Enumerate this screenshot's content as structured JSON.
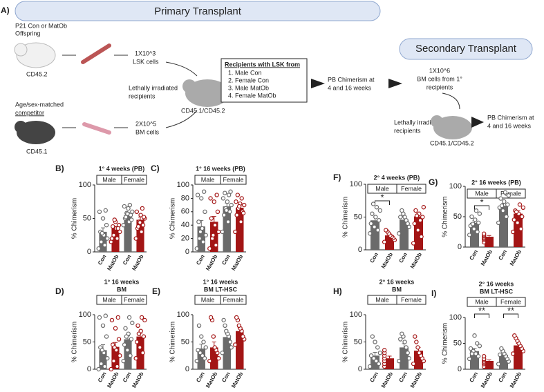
{
  "diagram": {
    "panel": "A)",
    "primary": "Primary Transplant",
    "secondary": "Secondary Transplant",
    "donor1": [
      "P21 Con or MatOb",
      "Offspring"
    ],
    "donor1_id": "CD45.2",
    "lsk": [
      "1X10^3",
      "LSK cells"
    ],
    "donor2": [
      "Age/sex-matched",
      "competitor"
    ],
    "donor2_id": "CD45.1",
    "bm": [
      "2X10^5",
      "BM cells"
    ],
    "recip": [
      "Lethally irradiated",
      "recipients"
    ],
    "recip_id": "CD45.1/CD45.2",
    "box_title": "Recipients with LSK from",
    "box_items": [
      "1.  Male Con",
      "2.  Female Con",
      "3.  Male MatOb",
      "4.  Female MatOb"
    ],
    "pb1": [
      "PB Chimerism at",
      "4 and 16 weeks"
    ],
    "bm2": [
      "1X10^6",
      "BM cells from 1°",
      "recipients"
    ],
    "recip2": [
      "Lethally irradiated",
      "recipients"
    ],
    "recip2_id": "CD45.1/CD45.2",
    "pb2": [
      "PB Chimerism at",
      "4 and 16 weeks"
    ]
  },
  "chart_data": [
    {
      "type": "bar",
      "panel": "B)",
      "title": "1° 4 weeks (PB)",
      "ylabel": "% Chimerism",
      "facets": [
        "Male",
        "Female"
      ],
      "categories": [
        "Con",
        "MatOb",
        "Con",
        "MatOb"
      ],
      "colors": [
        "#6b6b6b",
        "#a31515",
        "#6b6b6b",
        "#a31515"
      ],
      "values": [
        30,
        35,
        55,
        48
      ],
      "errors": [
        6,
        3,
        4,
        4
      ],
      "points": [
        [
          5,
          10,
          15,
          20,
          25,
          30,
          40,
          50,
          60,
          62,
          28
        ],
        [
          15,
          20,
          25,
          30,
          35,
          38,
          40,
          45,
          20,
          35,
          48
        ],
        [
          40,
          45,
          50,
          55,
          58,
          60,
          65,
          68,
          70,
          52,
          48,
          57
        ],
        [
          20,
          30,
          35,
          40,
          45,
          50,
          55,
          60,
          65,
          38,
          52,
          44
        ]
      ],
      "significance": [
        null,
        null
      ],
      "ylim": [
        0,
        100
      ],
      "yticks": [
        0,
        50,
        100
      ]
    },
    {
      "type": "bar",
      "panel": "C)",
      "title": "1° 16 weeks (PB)",
      "ylabel": "% Chimerism",
      "facets": [
        "Male",
        "Female"
      ],
      "categories": [
        "Con",
        "MatOb",
        "Con",
        "MatOb"
      ],
      "colors": [
        "#6b6b6b",
        "#a31515",
        "#6b6b6b",
        "#a31515"
      ],
      "values": [
        38,
        45,
        68,
        66
      ],
      "errors": [
        9,
        8,
        5,
        4
      ],
      "points": [
        [
          5,
          15,
          20,
          25,
          35,
          45,
          60,
          80,
          85,
          90,
          30
        ],
        [
          5,
          10,
          20,
          30,
          40,
          50,
          60,
          75,
          80,
          85,
          25
        ],
        [
          30,
          45,
          55,
          60,
          65,
          70,
          75,
          80,
          85,
          88,
          90,
          62
        ],
        [
          30,
          45,
          55,
          60,
          65,
          70,
          72,
          75,
          80,
          85,
          58,
          68
        ]
      ],
      "significance": [
        null,
        null
      ],
      "ylim": [
        0,
        100
      ],
      "yticks": [
        0,
        20,
        40,
        60,
        80,
        100
      ]
    },
    {
      "type": "bar",
      "panel": "F)",
      "title": "2° 4 weeks (PB)",
      "ylabel": "% Chimerism",
      "facets": [
        "Male",
        "Female"
      ],
      "categories": [
        "Con",
        "MatOb",
        "Con",
        "MatOb"
      ],
      "colors": [
        "#6b6b6b",
        "#a31515",
        "#6b6b6b",
        "#a31515"
      ],
      "values": [
        45,
        22,
        46,
        51
      ],
      "errors": [
        5,
        2,
        5,
        5
      ],
      "points": [
        [
          25,
          30,
          35,
          40,
          45,
          50,
          55,
          60,
          65,
          70
        ],
        [
          12,
          15,
          18,
          20,
          22,
          25,
          28,
          30
        ],
        [
          25,
          35,
          40,
          45,
          50,
          55,
          60,
          50
        ],
        [
          10,
          20,
          30,
          40,
          50,
          55,
          60,
          65,
          45,
          52
        ]
      ],
      "significance": [
        "*",
        null
      ],
      "ylim": [
        0,
        100
      ],
      "yticks": [
        0,
        50,
        100
      ]
    },
    {
      "type": "bar",
      "panel": "G)",
      "title": "2° 16 weeks (PB)",
      "ylabel": "% Chimerism",
      "facets": [
        "Male",
        "Female"
      ],
      "categories": [
        "Con",
        "MatOb",
        "Con",
        "MatOb"
      ],
      "colors": [
        "#6b6b6b",
        "#a31515",
        "#6b6b6b",
        "#a31515"
      ],
      "values": [
        40,
        17,
        68,
        55
      ],
      "errors": [
        4,
        2,
        4,
        5
      ],
      "points": [
        [
          20,
          25,
          30,
          35,
          40,
          45,
          50,
          55,
          60,
          38
        ],
        [
          8,
          12,
          14,
          16,
          18,
          20,
          22
        ],
        [
          40,
          50,
          60,
          65,
          70,
          75,
          80,
          85,
          90,
          68
        ],
        [
          25,
          30,
          40,
          45,
          50,
          55,
          60,
          65,
          70,
          58
        ]
      ],
      "significance": [
        "*",
        null
      ],
      "ylim": [
        0,
        100
      ],
      "yticks": [
        0,
        50,
        100
      ]
    },
    {
      "type": "bar",
      "panel": "D)",
      "title": "1° 16 weeks",
      "subtitle": "BM",
      "ylabel": "% Chimerism",
      "facets": [
        "Male",
        "Female"
      ],
      "categories": [
        "Con",
        "MatOb",
        "Con",
        "MatOb"
      ],
      "colors": [
        "#6b6b6b",
        "#a31515",
        "#6b6b6b",
        "#a31515"
      ],
      "values": [
        35,
        41,
        55,
        60
      ],
      "errors": [
        10,
        8,
        6,
        6
      ],
      "points": [
        [
          0,
          5,
          10,
          20,
          30,
          40,
          60,
          80,
          95,
          98,
          35
        ],
        [
          0,
          5,
          15,
          25,
          35,
          45,
          55,
          75,
          90,
          95,
          40
        ],
        [
          15,
          25,
          35,
          45,
          55,
          65,
          75,
          85,
          95,
          60
        ],
        [
          20,
          30,
          40,
          50,
          60,
          70,
          80,
          90,
          95,
          65
        ]
      ],
      "significance": [
        null,
        null
      ],
      "ylim": [
        0,
        100
      ],
      "yticks": [
        0,
        50,
        100
      ]
    },
    {
      "type": "bar",
      "panel": "E)",
      "title": "1° 16 weeks",
      "subtitle": "BM LT-HSC",
      "ylabel": "% Chimerism",
      "facets": [
        "Male",
        "Female"
      ],
      "categories": [
        "Con",
        "MatOb",
        "Con",
        "MatOb"
      ],
      "colors": [
        "#6b6b6b",
        "#a31515",
        "#6b6b6b",
        "#a31515"
      ],
      "values": [
        38,
        40,
        59,
        70
      ],
      "errors": [
        8,
        10,
        7,
        6
      ],
      "points": [
        [
          15,
          20,
          25,
          30,
          35,
          40,
          50,
          60,
          80
        ],
        [
          15,
          20,
          30,
          35,
          40,
          60,
          90,
          95
        ],
        [
          30,
          40,
          50,
          60,
          65,
          70,
          80,
          90
        ],
        [
          45,
          55,
          60,
          70,
          75,
          80,
          90,
          95
        ]
      ],
      "significance": [
        null,
        null
      ],
      "ylim": [
        0,
        100
      ],
      "yticks": [
        0,
        50,
        100
      ]
    },
    {
      "type": "bar",
      "panel": "H)",
      "title": "2° 16 weeks",
      "subtitle": "BM",
      "ylabel": "% Chimerism",
      "facets": [
        "Male",
        "Female"
      ],
      "categories": [
        "Con",
        "MatOb",
        "Con",
        "MatOb"
      ],
      "colors": [
        "#6b6b6b",
        "#a31515",
        "#6b6b6b",
        "#a31515"
      ],
      "values": [
        25,
        20,
        40,
        34
      ],
      "errors": [
        6,
        4,
        7,
        6
      ],
      "points": [
        [
          5,
          10,
          15,
          20,
          25,
          30,
          40,
          50,
          60
        ],
        [
          5,
          10,
          15,
          20,
          25,
          30,
          35
        ],
        [
          15,
          20,
          30,
          40,
          50,
          60,
          65,
          55
        ],
        [
          10,
          15,
          20,
          25,
          30,
          40,
          50,
          60
        ]
      ],
      "significance": [
        null,
        null
      ],
      "ylim": [
        0,
        100
      ],
      "yticks": [
        0,
        50,
        100
      ]
    },
    {
      "type": "bar",
      "panel": "I)",
      "title": "2° 16 weeks",
      "subtitle": "BM LT-HSC",
      "ylabel": "% Chimerism",
      "facets": [
        "Male",
        "Female"
      ],
      "categories": [
        "Con",
        "MatOb",
        "Con",
        "MatOb"
      ],
      "colors": [
        "#6b6b6b",
        "#a31515",
        "#6b6b6b",
        "#a31515"
      ],
      "values": [
        35,
        16,
        28,
        46
      ],
      "errors": [
        5,
        2,
        4,
        4
      ],
      "points": [
        [
          20,
          25,
          30,
          35,
          40,
          45,
          50,
          65,
          30
        ],
        [
          5,
          10,
          12,
          15,
          18,
          20,
          25
        ],
        [
          10,
          15,
          20,
          25,
          30,
          35,
          40,
          28
        ],
        [
          30,
          35,
          40,
          45,
          50,
          55,
          60,
          65
        ]
      ],
      "significance": [
        "**",
        "**"
      ],
      "ylim": [
        0,
        100
      ],
      "yticks": [
        0,
        50,
        100
      ]
    }
  ]
}
